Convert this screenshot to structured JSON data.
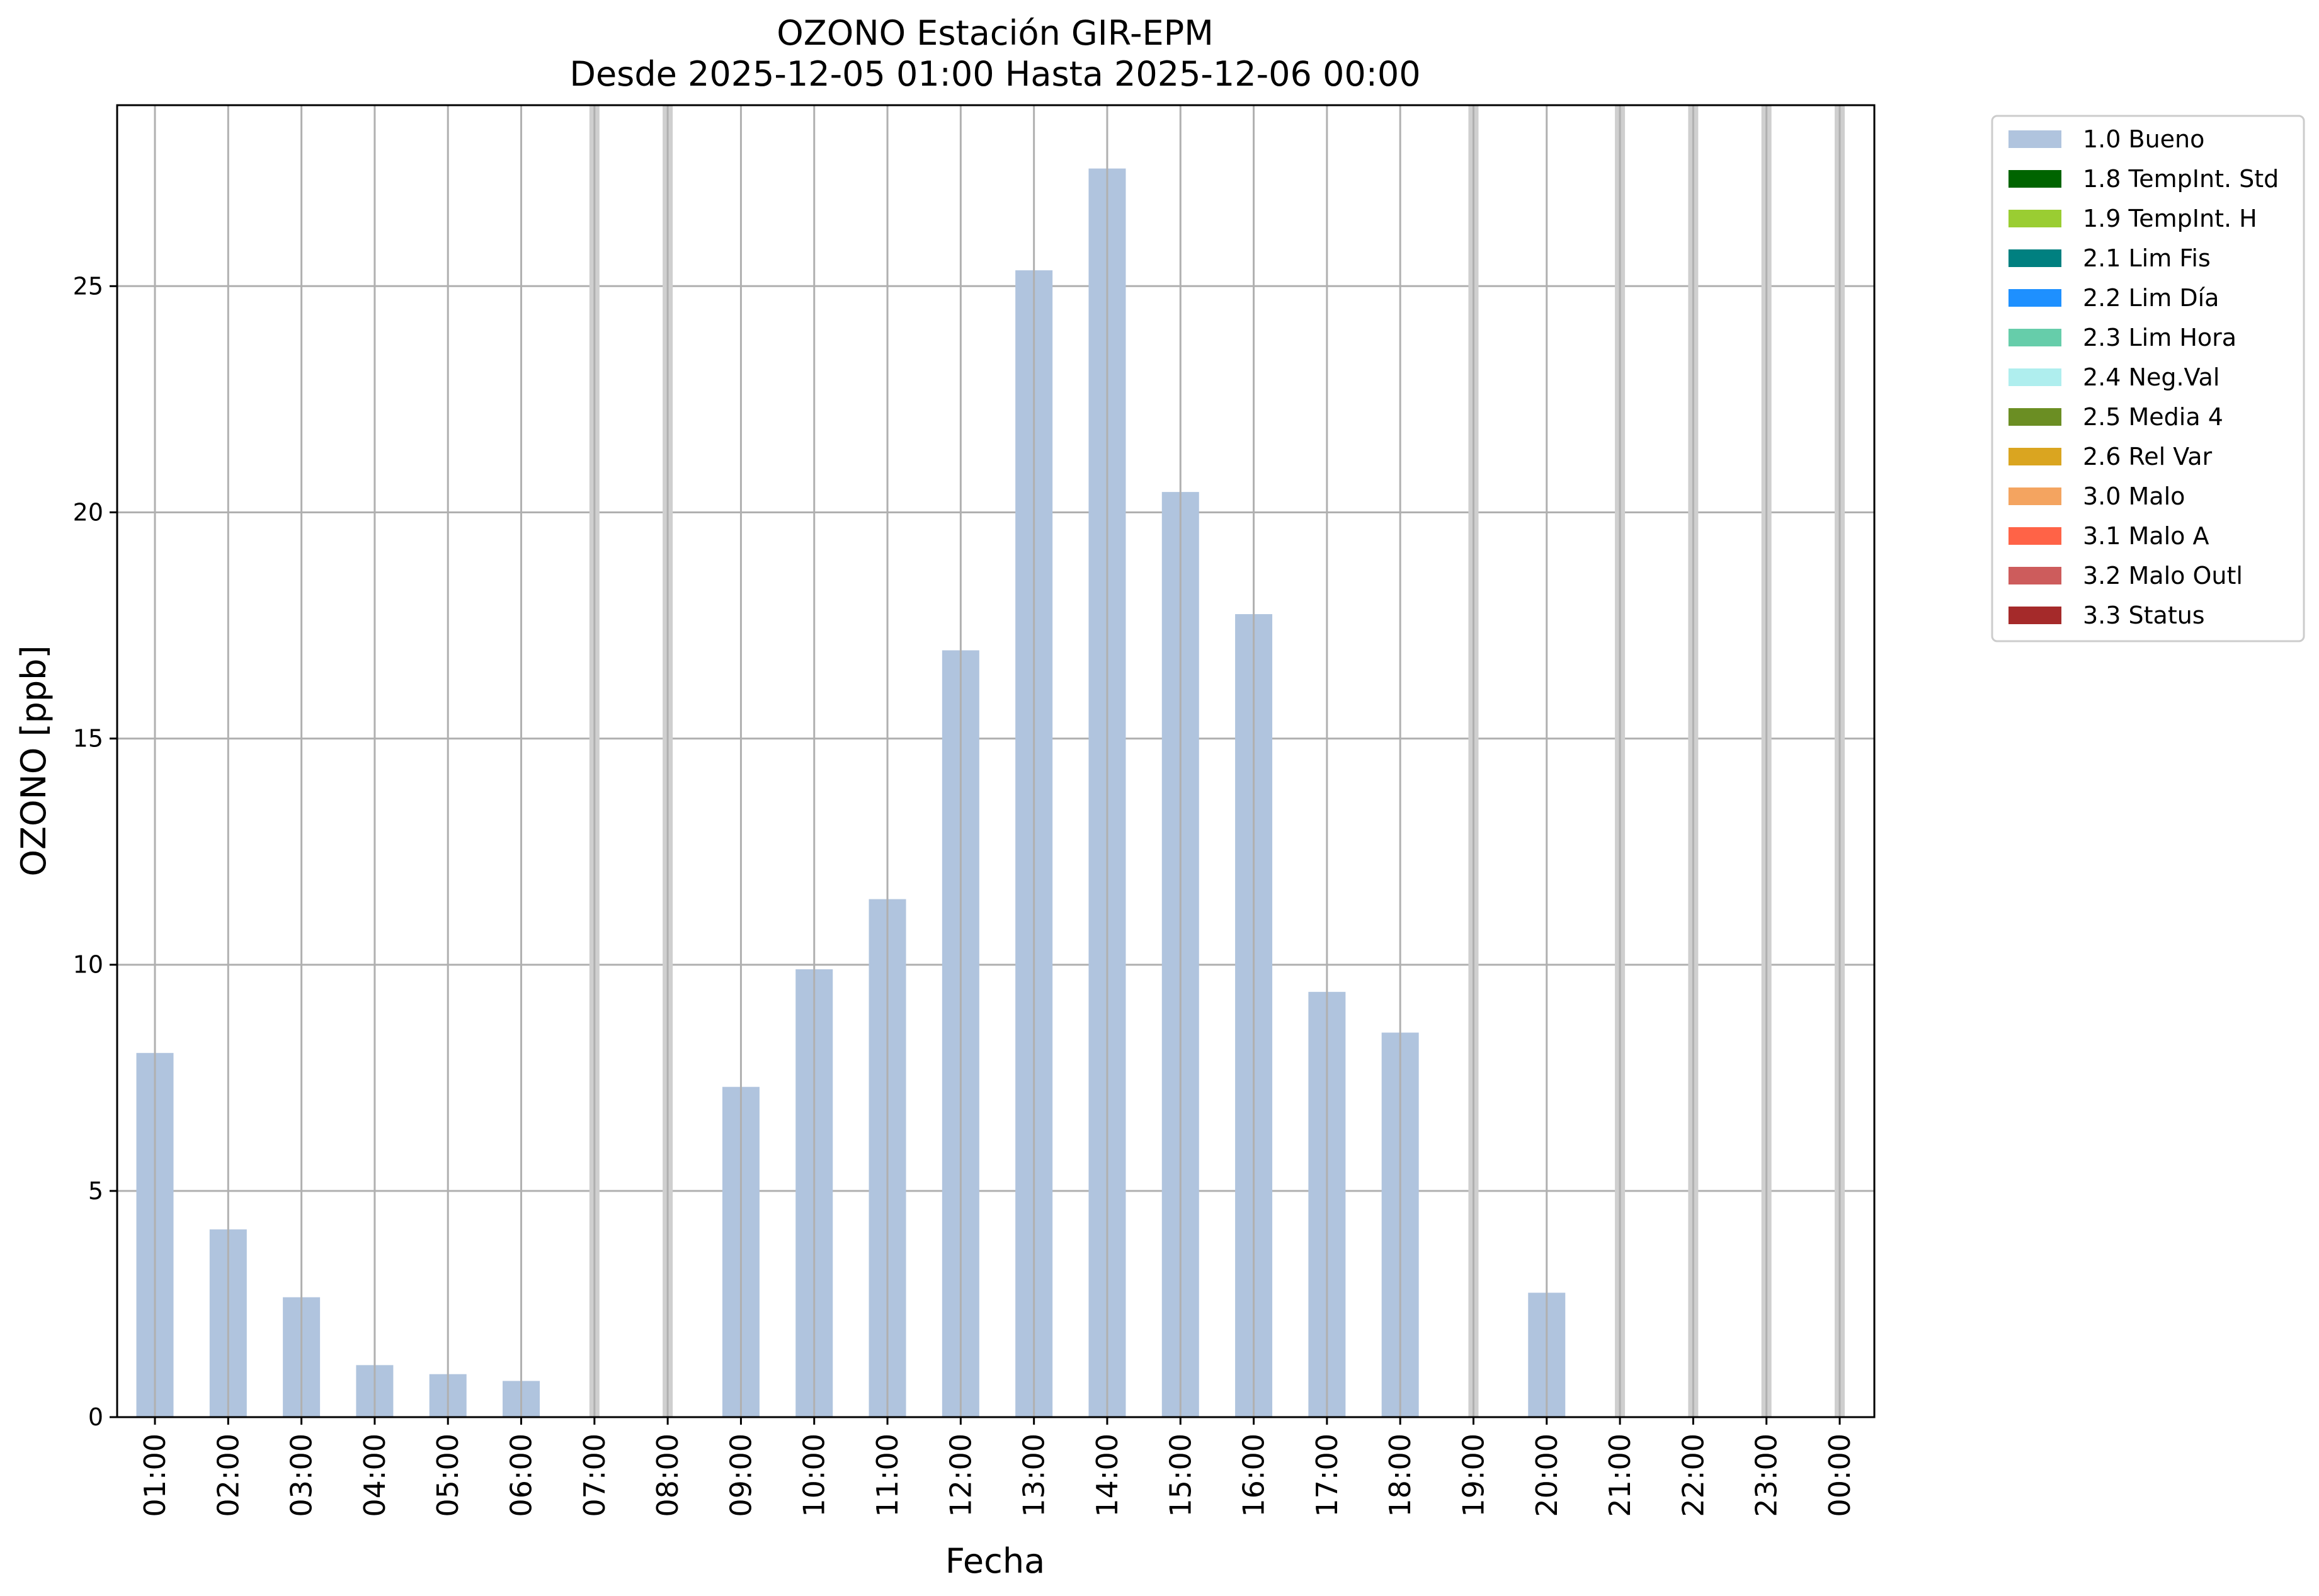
{
  "chart_data": {
    "type": "bar",
    "title": "OZONO Estación GIR-EPM",
    "subtitle": "Desde 2025-12-05 01:00 Hasta 2025-12-06 00:00",
    "xlabel": "Fecha",
    "ylabel": "OZONO [ppb]",
    "ylim": [
      0,
      29
    ],
    "yticks": [
      0,
      5,
      10,
      15,
      20,
      25
    ],
    "grid": true,
    "legend_position": "outside-top-right",
    "categories": [
      "01:00",
      "02:00",
      "03:00",
      "04:00",
      "05:00",
      "06:00",
      "07:00",
      "08:00",
      "09:00",
      "10:00",
      "11:00",
      "12:00",
      "13:00",
      "14:00",
      "15:00",
      "16:00",
      "17:00",
      "18:00",
      "19:00",
      "20:00",
      "21:00",
      "22:00",
      "23:00",
      "00:00"
    ],
    "missing_categories": [
      "07:00",
      "08:00",
      "19:00",
      "21:00",
      "22:00",
      "23:00",
      "00:00"
    ],
    "series": [
      {
        "name": "1.0 Bueno",
        "color": "#b0c4de",
        "values": [
          8.05,
          4.15,
          2.65,
          1.15,
          0.95,
          0.8,
          null,
          null,
          7.3,
          9.9,
          11.45,
          16.95,
          25.35,
          27.6,
          20.45,
          17.75,
          9.4,
          8.5,
          null,
          2.75,
          null,
          null,
          null,
          null
        ]
      }
    ],
    "legend": [
      {
        "label": "1.0 Bueno",
        "color": "#b0c4de"
      },
      {
        "label": "1.8 TempInt. Std",
        "color": "#006400"
      },
      {
        "label": "1.9 TempInt. H",
        "color": "#9acd32"
      },
      {
        "label": "2.1 Lim Fis",
        "color": "#008080"
      },
      {
        "label": "2.2 Lim Día",
        "color": "#1e90ff"
      },
      {
        "label": "2.3 Lim Hora",
        "color": "#66cdaa"
      },
      {
        "label": "2.4 Neg.Val",
        "color": "#afeeee"
      },
      {
        "label": "2.5 Media 4",
        "color": "#6b8e23"
      },
      {
        "label": "2.6 Rel Var",
        "color": "#daa520"
      },
      {
        "label": "3.0 Malo",
        "color": "#f4a460"
      },
      {
        "label": "3.1 Malo A",
        "color": "#ff6347"
      },
      {
        "label": "3.2 Malo Outl",
        "color": "#cd5c5c"
      },
      {
        "label": "3.3 Status",
        "color": "#a52a2a"
      }
    ]
  }
}
